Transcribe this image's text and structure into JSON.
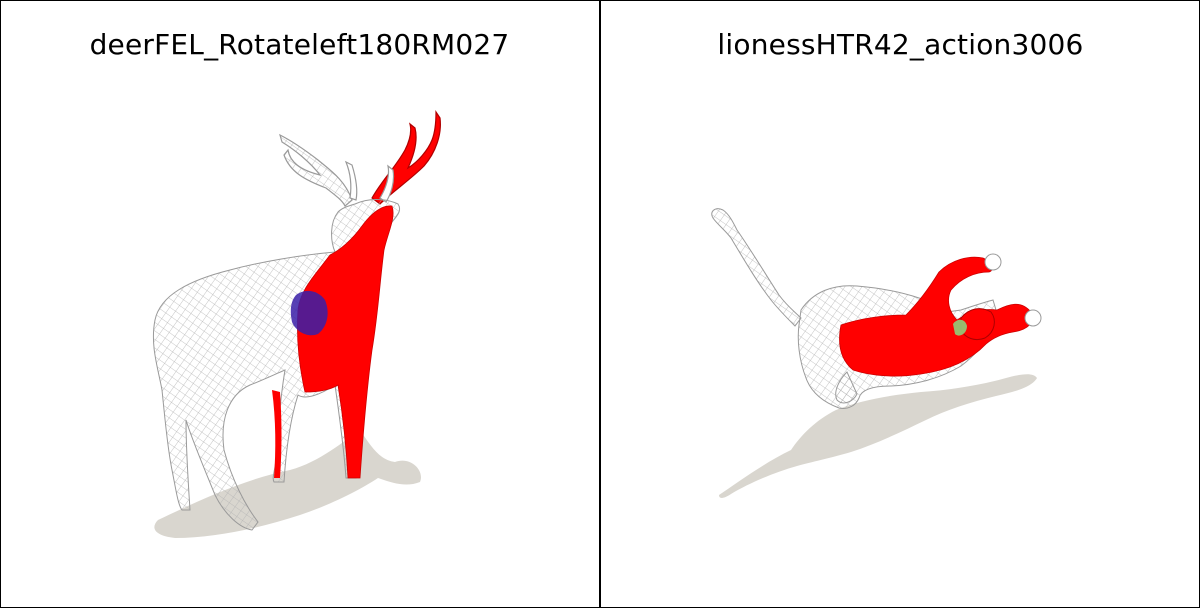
{
  "panels": [
    {
      "title": "deerFEL_Rotateleft180RM027",
      "subject": "deer mesh render",
      "colors": {
        "mesh": "#ffffff",
        "wire": "#bdbdbd",
        "highlight": "#ff0000",
        "deep": "#3a1fa8",
        "shadow": "#d9d6cf"
      }
    },
    {
      "title": "lionessHTR42_action3006",
      "subject": "lioness mesh render",
      "colors": {
        "mesh": "#ffffff",
        "wire": "#bdbdbd",
        "highlight": "#ff0000",
        "accent": "#8fcf7a",
        "shadow": "#d9d6cf"
      }
    }
  ]
}
